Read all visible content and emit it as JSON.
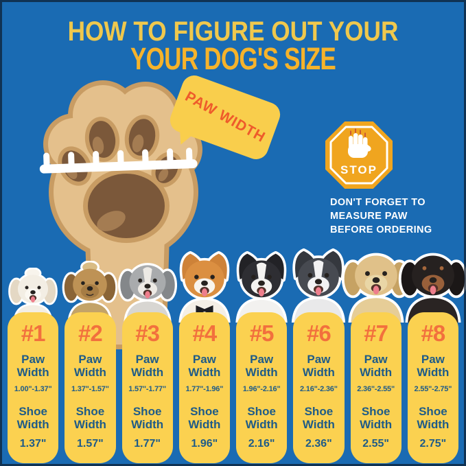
{
  "title": {
    "line1": "HOW TO FIGURE OUT YOUR",
    "line2": "YOUR DOG'S SIZE"
  },
  "paw_diagram": {
    "bubble_label": "PAW WIDTH",
    "paw_icon": "dog-paw-illustration",
    "ruler_icon": "measuring-ruler-icon"
  },
  "stop_reminder": {
    "sign_label": "STOP",
    "hand_icon": "raised-hand-icon",
    "lines": [
      "DON'T FORGET TO",
      "MEASURE PAW",
      "BEFORE ORDERING"
    ]
  },
  "size_chart": {
    "paw_width_label": "Paw Width",
    "shoe_width_label": "Shoe Width",
    "columns": [
      {
        "rank": "#1",
        "breed": "bichon-frise",
        "paw_width_range": "1.00\"-1.37\"",
        "shoe_width": "1.37\"",
        "dog": {
          "size": 80,
          "ears": "floppy",
          "fur": "#F3EEE4",
          "ear": "#E4D8C4",
          "muzzle": "#FBF8F2",
          "chest": "#F3EEE4",
          "topknot": "#F8F4EC",
          "tongue": true
        }
      },
      {
        "rank": "#2",
        "breed": "yorkshire-terrier",
        "paw_width_range": "1.37\"-1.57\"",
        "shoe_width": "1.57\"",
        "dog": {
          "size": 90,
          "ears": "floppy",
          "fur": "#BE9255",
          "ear": "#8A6436",
          "muzzle": "#A67C44",
          "chest": "#C3A368",
          "topknot": "#D9BC85",
          "tongue": false
        }
      },
      {
        "rank": "#3",
        "breed": "bearded-collie-mix",
        "paw_width_range": "1.57\"-1.77\"",
        "shoe_width": "1.77\"",
        "dog": {
          "size": 96,
          "ears": "floppy",
          "fur": "#A9ABAD",
          "ear": "#84878A",
          "muzzle": "#EDEAE5",
          "chest": "#D8D6D2",
          "blaze": true,
          "tongue": true
        }
      },
      {
        "rank": "#4",
        "breed": "shiba-inu",
        "paw_width_range": "1.77\"-1.96\"",
        "shoe_width": "1.96\"",
        "dog": {
          "size": 104,
          "ears": "pointy",
          "fur": "#DB8F41",
          "ear": "#CE8238",
          "muzzle": "#F8F4ED",
          "chest": "#F4EFE6",
          "tongue": true,
          "bowtie": "#1E1E22"
        }
      },
      {
        "rank": "#5",
        "breed": "border-collie",
        "paw_width_range": "1.96\"-2.16\"",
        "shoe_width": "2.16\"",
        "dog": {
          "size": 104,
          "ears": "pointy",
          "fur": "#2E2E33",
          "ear": "#222226",
          "muzzle": "#F4F3F1",
          "chest": "#F2F1EF",
          "blaze": true,
          "tongue": true
        }
      },
      {
        "rank": "#6",
        "breed": "siberian-husky",
        "paw_width_range": "2.16\"-2.36\"",
        "shoe_width": "2.36\"",
        "dog": {
          "size": 108,
          "ears": "pointy",
          "fur": "#474A51",
          "ear": "#35383E",
          "muzzle": "#F2F2F3",
          "chest": "#E9E9EA",
          "blaze": true,
          "tongue": true
        }
      },
      {
        "rank": "#7",
        "breed": "golden-retriever",
        "paw_width_range": "2.36\"-2.55\"",
        "shoe_width": "2.55\"",
        "dog": {
          "size": 112,
          "ears": "floppy",
          "fur": "#E0C189",
          "ear": "#C6A263",
          "muzzle": "#E9D6A6",
          "chest": "#E6CD97",
          "tongue": true
        }
      },
      {
        "rank": "#8",
        "breed": "rottweiler",
        "paw_width_range": "2.55\"-2.75\"",
        "shoe_width": "2.75\"",
        "dog": {
          "size": 112,
          "ears": "floppy",
          "fur": "#262120",
          "ear": "#1B1717",
          "muzzle": "#99603A",
          "chest": "#2A2423",
          "brows": "#A5673C",
          "tongue": true
        }
      }
    ]
  },
  "colors": {
    "background": "#1A6BB3",
    "title_primary": "#EFC84D",
    "title_secondary": "#F6B32B",
    "card_yellow": "#FBD150",
    "rank_orange": "#F2703D",
    "card_text_blue": "#1E5B88",
    "bubble_yellow": "#F9CE4C",
    "bubble_text_orange": "#EE5B2B",
    "stop_sign_orange": "#F0A51F",
    "paw_tan": "#E4C08C",
    "paw_outline_tan": "#C89C63",
    "paw_pad_brown": "#7B583A",
    "note_text": "#FFFFFF"
  }
}
